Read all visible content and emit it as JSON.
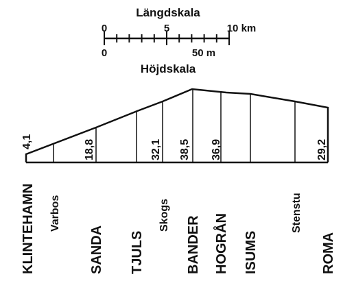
{
  "length_scale": {
    "title": "Längdskala",
    "labels": [
      "0",
      "5",
      "10 km"
    ]
  },
  "height_scale": {
    "title": "Höjdskala",
    "labels": [
      "0",
      "50 m"
    ]
  },
  "stations": [
    "KLINTEHAMN",
    "Varbos",
    "SANDA",
    "TJULS",
    "Skogs",
    "BANDER",
    "HOGRÅN",
    "ISUMS",
    "Stenstu",
    "ROMA"
  ],
  "elevations": [
    "4,1",
    "18,8",
    "32,1",
    "38,5",
    "36,9",
    "29,2"
  ]
}
